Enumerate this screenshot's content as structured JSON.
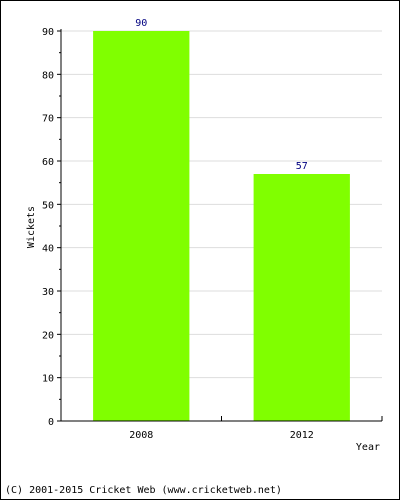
{
  "chart_data": {
    "type": "bar",
    "categories": [
      "2008",
      "2012"
    ],
    "values": [
      90,
      57
    ],
    "xlabel": "Year",
    "ylabel": "Wickets",
    "ylim": [
      0,
      90
    ],
    "yticks": [
      0,
      10,
      20,
      30,
      40,
      50,
      60,
      70,
      80,
      90
    ],
    "grid": true,
    "data_labels": true
  },
  "colors": {
    "bar": "#80ff00",
    "data_label": "#000080",
    "grid": "#dddddd",
    "axis": "#000000"
  },
  "footer": "(C) 2001-2015 Cricket Web (www.cricketweb.net)"
}
